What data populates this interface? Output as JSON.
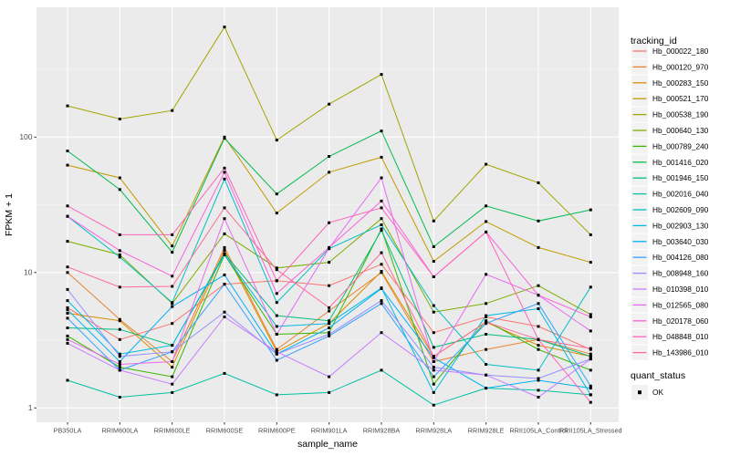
{
  "chart_data": {
    "type": "line",
    "title": "",
    "xlabel": "sample_name",
    "ylabel": "FPKM + 1",
    "scale": "log10",
    "ylim": [
      0.79,
      900
    ],
    "grid": "on",
    "legend_position": "right",
    "legend_title": "tracking_id",
    "quant_legend": {
      "title": "quant_status",
      "items": [
        "OK"
      ]
    },
    "point_style": {
      "shape": "square",
      "color": "#000000",
      "size": 3
    },
    "colors": {
      "panel_bg": "#EBEBEB",
      "grid_major": "#FFFFFF",
      "grid_minor": "#F5F5F5",
      "tick_text": "#4D4D4D",
      "axis_title": "#000000",
      "legend_key_bg": "#F2F2F2"
    },
    "yticks": [
      {
        "label": "1",
        "value": 1
      },
      {
        "label": "10",
        "value": 10
      },
      {
        "label": "100",
        "value": 100
      }
    ],
    "y_minor": [
      3.1623,
      31.623,
      316.23
    ],
    "x_categories": [
      "PB350LA",
      "RRIM600LA",
      "RRIM600LE",
      "RRIM600SE",
      "RRIM600PE",
      "RRIM901LA",
      "RRIM928BA",
      "RRIM928LA",
      "RRIM928LE",
      "RRII105LA_Control",
      "RRII105LA_Stressed"
    ],
    "series": [
      {
        "id": "Hb_000022_180",
        "color": "#F8766D",
        "values": [
          5.5,
          3.2,
          4.2,
          8.2,
          8.7,
          8.0,
          11.5,
          3.6,
          4.7,
          4.0,
          2.7
        ]
      },
      {
        "id": "Hb_000120_970",
        "color": "#EA8331",
        "values": [
          10.0,
          4.5,
          2.2,
          15.3,
          2.7,
          5.2,
          10.0,
          2.2,
          2.7,
          3.2,
          2.5
        ]
      },
      {
        "id": "Hb_000283_150",
        "color": "#D89000",
        "values": [
          5.0,
          4.4,
          2.0,
          14.6,
          2.6,
          4.2,
          10.2,
          2.4,
          4.3,
          2.9,
          2.4
        ]
      },
      {
        "id": "Hb_000521_170",
        "color": "#C09B00",
        "values": [
          62,
          50,
          15.7,
          100,
          27.5,
          55,
          71,
          12.1,
          23.8,
          15.3,
          11.9
        ]
      },
      {
        "id": "Hb_000538_190",
        "color": "#A3A500",
        "values": [
          170,
          136,
          157,
          650,
          95,
          175,
          290,
          24,
          63,
          46,
          19
        ]
      },
      {
        "id": "Hb_000640_130",
        "color": "#7CAE00",
        "values": [
          17,
          13.5,
          5.9,
          19.3,
          10.8,
          11.9,
          25,
          5.1,
          5.9,
          8.0,
          4.9
        ]
      },
      {
        "id": "Hb_000789_240",
        "color": "#39B600",
        "values": [
          3.4,
          2.0,
          1.7,
          13.5,
          3.5,
          3.6,
          21,
          1.5,
          4.4,
          2.7,
          1.9
        ]
      },
      {
        "id": "Hb_001416_020",
        "color": "#00BB4E",
        "values": [
          79,
          41,
          14.1,
          98,
          38,
          72,
          111,
          15.5,
          31,
          24,
          29
        ]
      },
      {
        "id": "Hb_001946_150",
        "color": "#00BF7D",
        "values": [
          3.9,
          3.8,
          2.9,
          13.8,
          4.8,
          4.4,
          20.5,
          2.8,
          3.5,
          3.2,
          2.4
        ]
      },
      {
        "id": "Hb_002016_040",
        "color": "#00C1A3",
        "values": [
          1.6,
          1.2,
          1.3,
          1.8,
          1.25,
          1.3,
          1.9,
          1.05,
          1.4,
          1.35,
          1.25
        ]
      },
      {
        "id": "Hb_002609_090",
        "color": "#00BFC4",
        "values": [
          26,
          13.0,
          6.0,
          49,
          6.0,
          15.0,
          22.5,
          5.7,
          2.1,
          1.9,
          7.8
        ]
      },
      {
        "id": "Hb_002903_130",
        "color": "#00BAE0",
        "values": [
          6.2,
          2.5,
          2.9,
          13.5,
          4.0,
          4.2,
          7.7,
          1.3,
          4.8,
          5.4,
          1.25
        ]
      },
      {
        "id": "Hb_003640_030",
        "color": "#00B0F6",
        "values": [
          5.3,
          2.2,
          5.6,
          9.6,
          2.5,
          3.9,
          7.6,
          2.35,
          1.4,
          1.6,
          1.4
        ]
      },
      {
        "id": "Hb_004126_080",
        "color": "#35A2FF",
        "values": [
          4.6,
          1.9,
          2.6,
          8.2,
          2.25,
          3.4,
          5.9,
          1.7,
          4.2,
          5.9,
          1.45
        ]
      },
      {
        "id": "Hb_008948_160",
        "color": "#9590FF",
        "values": [
          7.5,
          2.4,
          2.6,
          5.1,
          2.5,
          3.5,
          6.2,
          2.0,
          1.75,
          1.65,
          2.3
        ]
      },
      {
        "id": "Hb_010398_010",
        "color": "#C77CFF",
        "values": [
          3.0,
          1.9,
          1.5,
          4.7,
          2.6,
          1.7,
          3.6,
          1.9,
          1.75,
          1.2,
          2.3
        ]
      },
      {
        "id": "Hb_012565_080",
        "color": "#E76BF3",
        "values": [
          3.2,
          2.1,
          2.2,
          25,
          3.5,
          15.1,
          50,
          2.2,
          9.7,
          6.8,
          3.7
        ]
      },
      {
        "id": "Hb_020178_060",
        "color": "#FA62DB",
        "values": [
          26,
          14.5,
          9.4,
          55,
          7.0,
          15.3,
          33.7,
          9.3,
          19.9,
          6.8,
          4.7
        ]
      },
      {
        "id": "Hb_048848_010",
        "color": "#FF62BC",
        "values": [
          31,
          19,
          19,
          59,
          8.7,
          23.3,
          30,
          9.3,
          19.9,
          3.2,
          1.1
        ]
      },
      {
        "id": "Hb_143986_010",
        "color": "#FF6A98",
        "values": [
          11,
          7.8,
          7.9,
          30,
          10.5,
          5.5,
          14,
          2.4,
          4.3,
          3.2,
          2.75
        ]
      }
    ]
  }
}
